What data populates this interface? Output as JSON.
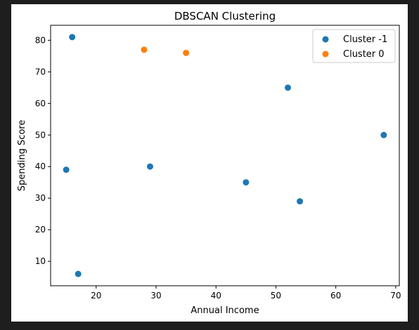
{
  "chart_data": {
    "type": "scatter",
    "title": "DBSCAN Clustering",
    "xlabel": "Annual Income",
    "ylabel": "Spending Score",
    "xlim": [
      12.4,
      70.6
    ],
    "ylim": [
      2.25,
      84.75
    ],
    "xticks": [
      20,
      30,
      40,
      50,
      60,
      70
    ],
    "yticks": [
      10,
      20,
      30,
      40,
      50,
      60,
      70,
      80
    ],
    "grid": false,
    "legend_position": "top-right",
    "series": [
      {
        "name": "Cluster -1",
        "color": "#1f77b4",
        "points": [
          [
            16,
            81
          ],
          [
            15,
            39
          ],
          [
            17,
            6
          ],
          [
            29,
            40
          ],
          [
            45,
            35
          ],
          [
            52,
            65
          ],
          [
            54,
            29
          ],
          [
            68,
            50
          ]
        ]
      },
      {
        "name": "Cluster 0",
        "color": "#ff7f0e",
        "points": [
          [
            28,
            77
          ],
          [
            35,
            76
          ]
        ]
      }
    ]
  }
}
